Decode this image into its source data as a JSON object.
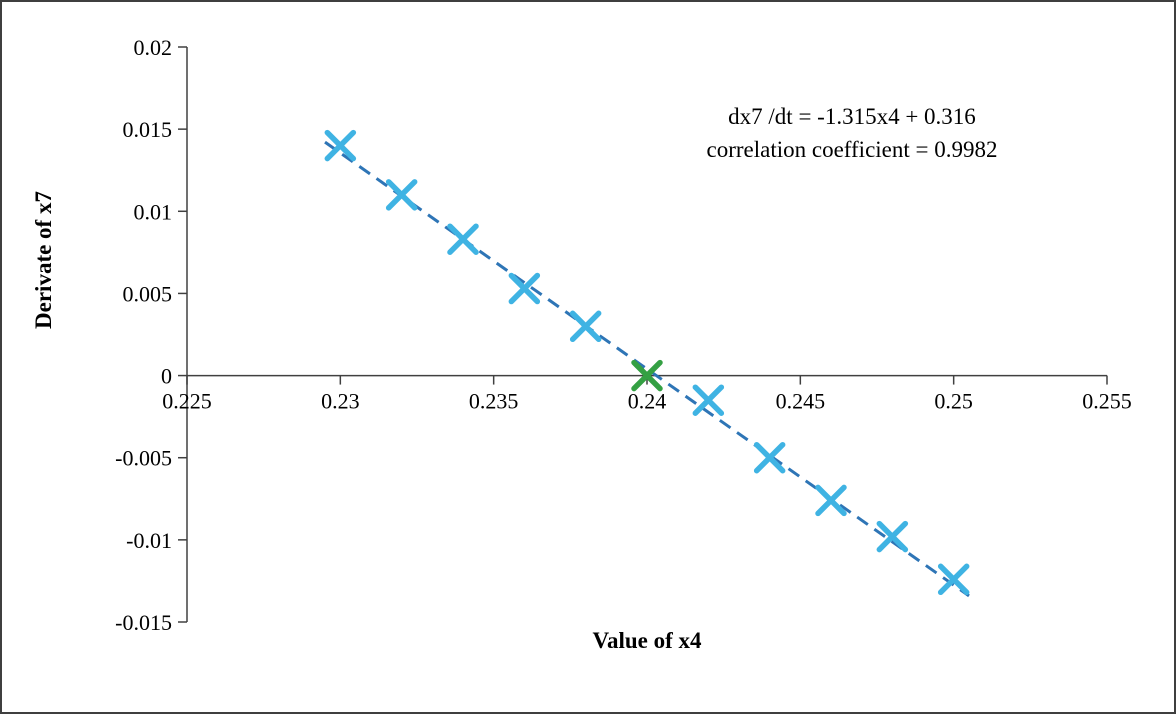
{
  "chart_data": {
    "type": "scatter",
    "title": "",
    "xlabel": "Value of x4",
    "ylabel": "Derivate of x7",
    "xlim": [
      0.225,
      0.255
    ],
    "ylim": [
      -0.015,
      0.02
    ],
    "grid": false,
    "legend_position": "none",
    "x_ticks": [
      {
        "value": 0.225,
        "label": "0.225"
      },
      {
        "value": 0.23,
        "label": "0.23"
      },
      {
        "value": 0.235,
        "label": "0.235"
      },
      {
        "value": 0.24,
        "label": "0.24"
      },
      {
        "value": 0.245,
        "label": "0.245"
      },
      {
        "value": 0.25,
        "label": "0.25"
      },
      {
        "value": 0.255,
        "label": "0.255"
      }
    ],
    "y_ticks": [
      {
        "value": 0.02,
        "label": "0.02"
      },
      {
        "value": 0.015,
        "label": "0.015"
      },
      {
        "value": 0.01,
        "label": "0.01"
      },
      {
        "value": 0.005,
        "label": "0.005"
      },
      {
        "value": 0,
        "label": "0"
      },
      {
        "value": -0.005,
        "label": "-0.005"
      },
      {
        "value": -0.01,
        "label": "-0.01"
      },
      {
        "value": -0.015,
        "label": "-0.015"
      }
    ],
    "series": [
      {
        "name": "data-points",
        "marker": "x",
        "color": "#3fb3e3",
        "points": [
          [
            0.23,
            0.014
          ],
          [
            0.232,
            0.011
          ],
          [
            0.234,
            0.0083
          ],
          [
            0.236,
            0.0053
          ],
          [
            0.238,
            0.003
          ],
          [
            0.242,
            -0.0015
          ],
          [
            0.244,
            -0.005
          ],
          [
            0.246,
            -0.0076
          ],
          [
            0.248,
            -0.0098
          ],
          [
            0.25,
            -0.0124
          ]
        ]
      },
      {
        "name": "equilibrium-point",
        "marker": "x",
        "color": "#34a043",
        "points": [
          [
            0.24,
            0.0
          ]
        ]
      }
    ],
    "trendline": {
      "slope": -1.315,
      "intercept": 0.316,
      "x_start": 0.2295,
      "x_end": 0.2505,
      "style": "dashed",
      "color": "#2e75b6"
    },
    "annotation": {
      "line1": "dx7 /dt = -1.315x4 + 0.316",
      "line2": "correlation coefficient = 0.9982"
    }
  }
}
